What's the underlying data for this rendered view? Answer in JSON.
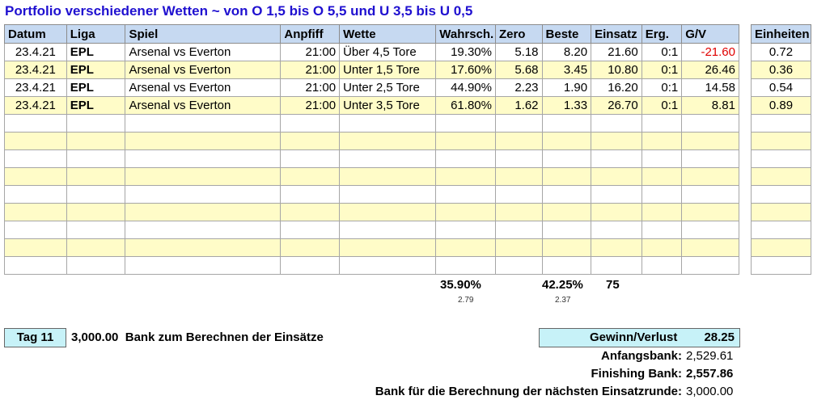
{
  "title": "Portfolio verschiedener Wetten ~ von O 1,5 bis O 5,5 und U 3,5 bis U 0,5",
  "headers": [
    "Datum",
    "Liga",
    "Spiel",
    "Anpfiff",
    "Wette",
    "Wahrsch.",
    "Zero",
    "Beste",
    "Einsatz",
    "Erg.",
    "G/V"
  ],
  "units_header": "Einheiten",
  "rows": [
    {
      "datum": "23.4.21",
      "liga": "EPL",
      "spiel": "Arsenal vs Everton",
      "anpfiff": "21:00",
      "wette": "Über 4,5 Tore",
      "wahrsch": "19.30%",
      "zero": "5.18",
      "beste": "8.20",
      "einsatz": "21.60",
      "erg": "0:1",
      "gv": "-21.60",
      "einheiten": "0.72"
    },
    {
      "datum": "23.4.21",
      "liga": "EPL",
      "spiel": "Arsenal vs Everton",
      "anpfiff": "21:00",
      "wette": "Unter 1,5 Tore",
      "wahrsch": "17.60%",
      "zero": "5.68",
      "beste": "3.45",
      "einsatz": "10.80",
      "erg": "0:1",
      "gv": "26.46",
      "einheiten": "0.36"
    },
    {
      "datum": "23.4.21",
      "liga": "EPL",
      "spiel": "Arsenal vs Everton",
      "anpfiff": "21:00",
      "wette": "Unter 2,5 Tore",
      "wahrsch": "44.90%",
      "zero": "2.23",
      "beste": "1.90",
      "einsatz": "16.20",
      "erg": "0:1",
      "gv": "14.58",
      "einheiten": "0.54"
    },
    {
      "datum": "23.4.21",
      "liga": "EPL",
      "spiel": "Arsenal vs Everton",
      "anpfiff": "21:00",
      "wette": "Unter 3,5 Tore",
      "wahrsch": "61.80%",
      "zero": "1.62",
      "beste": "1.33",
      "einsatz": "26.70",
      "erg": "0:1",
      "gv": "8.81",
      "einheiten": "0.89"
    }
  ],
  "totals": {
    "wahrsch": "35.90%",
    "wahrsch_sub": "2.79",
    "beste": "42.25%",
    "beste_sub": "2.37",
    "einsatz": "75"
  },
  "tag": "Tag 11",
  "bank_amount": "3,000.00",
  "bank_text": "Bank zum Berechnen der Einsätze",
  "gewinn_label": "Gewinn/Verlust",
  "gewinn_value": "28.25",
  "anfangsbank_label": "Anfangsbank:",
  "anfangsbank_value": "2,529.61",
  "finishing_label": "Finishing Bank:",
  "finishing_value": "2,557.86",
  "next_label": "Bank für die Berechnung der nächsten Einsatzrunde:",
  "next_value": "3,000.00",
  "colors": {
    "header_bg": "#c6d9f1",
    "stripe": "#fffcc8",
    "title": "#1f10d0",
    "negative": "#e00000",
    "box": "#c7f2f8"
  }
}
